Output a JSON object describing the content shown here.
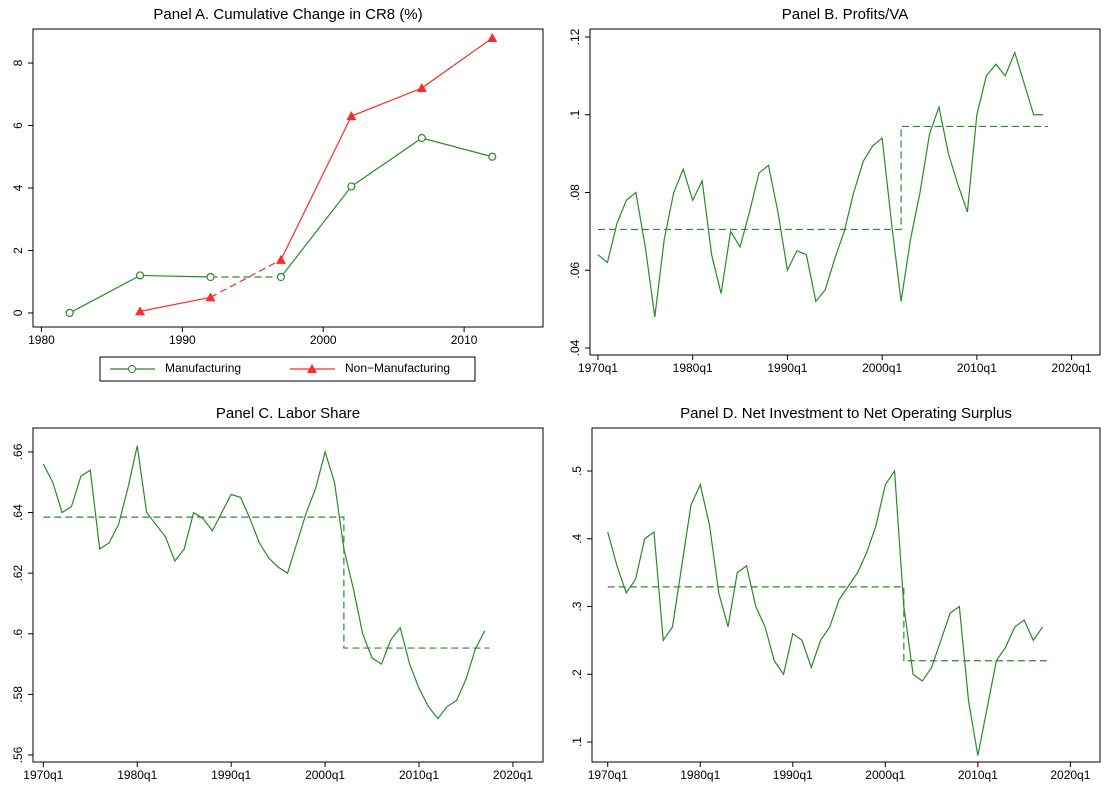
{
  "chart_data": [
    {
      "type": "line",
      "title": "Panel A. Cumulative Change in CR8 (%)",
      "xlim": [
        1979.4,
        2015.6
      ],
      "ylim": [
        -0.45,
        9.09
      ],
      "xticks": [
        1980,
        1990,
        2000,
        2010
      ],
      "yticks": [
        0,
        2,
        4,
        6,
        8
      ],
      "legend": "bottom",
      "series": [
        {
          "name": "Manufacturing",
          "color": "#2a8a2a",
          "marker": "circle",
          "dashed_segments": [
            2
          ],
          "x": [
            1982,
            1987,
            1992,
            1997,
            2002,
            2007,
            2012
          ],
          "values": [
            0,
            1.2,
            1.15,
            1.15,
            4.05,
            5.6,
            5.0
          ]
        },
        {
          "name": "Non−Manufacturing",
          "color": "#ff2a2a",
          "marker": "triangle",
          "dashed_segments": [
            1
          ],
          "x": [
            1987,
            1992,
            1997,
            2002,
            2007,
            2012
          ],
          "values": [
            0.05,
            0.5,
            1.7,
            6.3,
            7.2,
            8.8
          ]
        }
      ]
    },
    {
      "type": "line",
      "title": "Panel B. Profits/VA",
      "xlim": [
        1969.16,
        2023.0
      ],
      "ylim": [
        0.0382,
        0.12206
      ],
      "xticks": [
        {
          "value": 1970,
          "label": "1970q1"
        },
        {
          "value": 1980,
          "label": "1980q1"
        },
        {
          "value": 1990,
          "label": "1990q1"
        },
        {
          "value": 2000,
          "label": "2000q1"
        },
        {
          "value": 2010,
          "label": "2010q1"
        },
        {
          "value": 2020,
          "label": "2020q1"
        }
      ],
      "yticks": [
        {
          "value": 0.04,
          "label": ".04"
        },
        {
          "value": 0.06,
          "label": ".06"
        },
        {
          "value": 0.08,
          "label": ".08"
        },
        {
          "value": 0.1,
          "label": ".1"
        },
        {
          "value": 0.12,
          "label": ".12"
        }
      ],
      "series": [
        {
          "color": "#2a8a2a",
          "x": [
            1970,
            1971,
            1972,
            1973,
            1974,
            1975,
            1976,
            1977,
            1978,
            1979,
            1980,
            1981,
            1982,
            1983,
            1984,
            1985,
            1986,
            1987,
            1988,
            1989,
            1990,
            1991,
            1992,
            1993,
            1994,
            1995,
            1996,
            1997,
            1998,
            1999,
            2000,
            2001,
            2002,
            2003,
            2004,
            2005,
            2006,
            2007,
            2008,
            2009,
            2010,
            2011,
            2012,
            2013,
            2014,
            2015,
            2016,
            2017
          ],
          "values": [
            0.064,
            0.062,
            0.072,
            0.078,
            0.08,
            0.066,
            0.048,
            0.068,
            0.08,
            0.086,
            0.078,
            0.083,
            0.064,
            0.054,
            0.07,
            0.066,
            0.075,
            0.085,
            0.087,
            0.075,
            0.06,
            0.065,
            0.064,
            0.052,
            0.055,
            0.063,
            0.07,
            0.08,
            0.088,
            0.092,
            0.094,
            0.072,
            0.052,
            0.068,
            0.08,
            0.095,
            0.102,
            0.09,
            0.082,
            0.075,
            0.1,
            0.11,
            0.113,
            0.11,
            0.116,
            0.108,
            0.1,
            0.1
          ]
        },
        {
          "color": "#2a8a2a",
          "dash": true,
          "x": [
            1970,
            2002,
            2002,
            2017.5
          ],
          "values": [
            0.0705,
            0.0705,
            0.097,
            0.097
          ]
        }
      ]
    },
    {
      "type": "line",
      "title": "Panel C. Labor Share",
      "xlim": [
        1968.9,
        2023.2
      ],
      "ylim": [
        0.5577,
        0.6679
      ],
      "xticks": [
        {
          "value": 1970,
          "label": "1970q1"
        },
        {
          "value": 1980,
          "label": "1980q1"
        },
        {
          "value": 1990,
          "label": "1990q1"
        },
        {
          "value": 2000,
          "label": "2000q1"
        },
        {
          "value": 2010,
          "label": "2010q1"
        },
        {
          "value": 2020,
          "label": "2020q1"
        }
      ],
      "yticks": [
        {
          "value": 0.56,
          "label": ".56"
        },
        {
          "value": 0.58,
          "label": ".58"
        },
        {
          "value": 0.6,
          "label": ".6"
        },
        {
          "value": 0.62,
          "label": ".62"
        },
        {
          "value": 0.64,
          "label": ".64"
        },
        {
          "value": 0.66,
          "label": ".66"
        }
      ],
      "series": [
        {
          "color": "#2a8a2a",
          "x": [
            1970,
            1971,
            1972,
            1973,
            1974,
            1975,
            1976,
            1977,
            1978,
            1979,
            1980,
            1981,
            1982,
            1983,
            1984,
            1985,
            1986,
            1987,
            1988,
            1989,
            1990,
            1991,
            1992,
            1993,
            1994,
            1995,
            1996,
            1997,
            1998,
            1999,
            2000,
            2001,
            2002,
            2003,
            2004,
            2005,
            2006,
            2007,
            2008,
            2009,
            2010,
            2011,
            2012,
            2013,
            2014,
            2015,
            2016,
            2017
          ],
          "values": [
            0.656,
            0.65,
            0.64,
            0.642,
            0.652,
            0.654,
            0.628,
            0.63,
            0.636,
            0.648,
            0.662,
            0.64,
            0.636,
            0.632,
            0.624,
            0.628,
            0.64,
            0.638,
            0.634,
            0.64,
            0.646,
            0.645,
            0.638,
            0.63,
            0.625,
            0.622,
            0.62,
            0.63,
            0.64,
            0.648,
            0.66,
            0.65,
            0.628,
            0.615,
            0.6,
            0.592,
            0.59,
            0.598,
            0.602,
            0.59,
            0.582,
            0.576,
            0.572,
            0.576,
            0.578,
            0.585,
            0.595,
            0.601
          ]
        },
        {
          "color": "#2a8a2a",
          "dash": true,
          "x": [
            1970,
            2002,
            2002,
            2017.5
          ],
          "values": [
            0.6385,
            0.6385,
            0.5953,
            0.5953
          ]
        }
      ]
    },
    {
      "type": "line",
      "title": "Panel D. Net Investment to Net Operating Surplus",
      "xlim": [
        1968.3,
        2023.2
      ],
      "ylim": [
        0.0705,
        0.5635
      ],
      "xticks": [
        {
          "value": 1970,
          "label": "1970q1"
        },
        {
          "value": 1980,
          "label": "1980q1"
        },
        {
          "value": 1990,
          "label": "1990q1"
        },
        {
          "value": 2000,
          "label": "2000q1"
        },
        {
          "value": 2010,
          "label": "2010q1"
        },
        {
          "value": 2020,
          "label": "2020q1"
        }
      ],
      "yticks": [
        {
          "value": 0.1,
          "label": ".1"
        },
        {
          "value": 0.2,
          "label": ".2"
        },
        {
          "value": 0.3,
          "label": ".3"
        },
        {
          "value": 0.4,
          "label": ".4"
        },
        {
          "value": 0.5,
          "label": ".5"
        }
      ],
      "series": [
        {
          "color": "#2a8a2a",
          "x": [
            1970,
            1971,
            1972,
            1973,
            1974,
            1975,
            1976,
            1977,
            1978,
            1979,
            1980,
            1981,
            1982,
            1983,
            1984,
            1985,
            1986,
            1987,
            1988,
            1989,
            1990,
            1991,
            1992,
            1993,
            1994,
            1995,
            1996,
            1997,
            1998,
            1999,
            2000,
            2001,
            2002,
            2003,
            2004,
            2005,
            2006,
            2007,
            2008,
            2009,
            2010,
            2011,
            2012,
            2013,
            2014,
            2015,
            2016,
            2017
          ],
          "values": [
            0.41,
            0.36,
            0.32,
            0.34,
            0.4,
            0.41,
            0.25,
            0.27,
            0.36,
            0.45,
            0.48,
            0.42,
            0.32,
            0.27,
            0.35,
            0.36,
            0.3,
            0.27,
            0.22,
            0.2,
            0.26,
            0.25,
            0.21,
            0.25,
            0.27,
            0.31,
            0.33,
            0.35,
            0.38,
            0.42,
            0.48,
            0.5,
            0.3,
            0.2,
            0.19,
            0.21,
            0.25,
            0.29,
            0.3,
            0.16,
            0.08,
            0.15,
            0.22,
            0.24,
            0.27,
            0.28,
            0.25,
            0.27
          ]
        },
        {
          "color": "#2a8a2a",
          "dash": true,
          "x": [
            1970,
            2002,
            2002,
            2017.5
          ],
          "values": [
            0.329,
            0.329,
            0.22,
            0.22
          ]
        }
      ]
    }
  ]
}
